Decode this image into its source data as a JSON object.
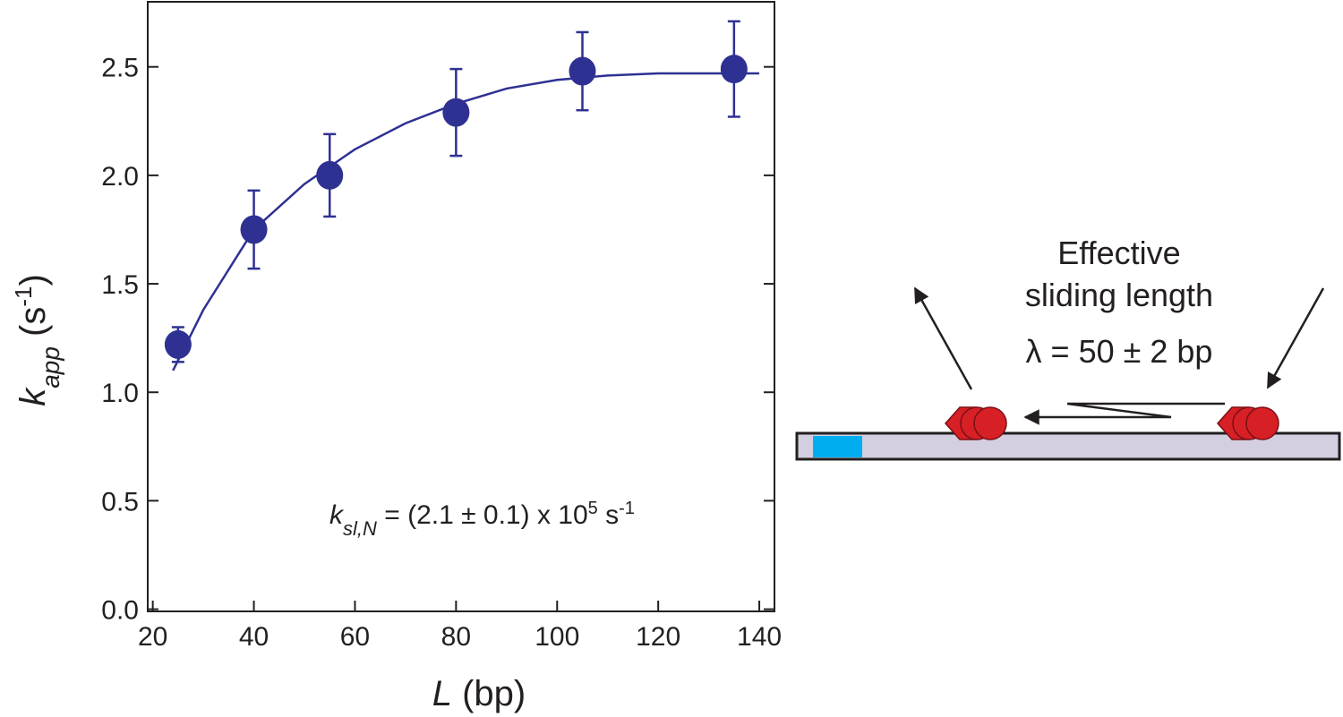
{
  "chart_data": {
    "type": "scatter",
    "x": [
      25,
      40,
      55,
      80,
      105,
      135
    ],
    "values": [
      1.22,
      1.75,
      2.0,
      2.29,
      2.48,
      2.49
    ],
    "errors": [
      0.08,
      0.18,
      0.19,
      0.2,
      0.18,
      0.22
    ],
    "color": "#2e3192",
    "fit": {
      "x": [
        24,
        30,
        40,
        50,
        60,
        70,
        80,
        90,
        100,
        110,
        120,
        140
      ],
      "values": [
        1.1,
        1.38,
        1.75,
        1.96,
        2.12,
        2.24,
        2.33,
        2.4,
        2.44,
        2.46,
        2.47,
        2.47
      ],
      "color": "#2e3192"
    },
    "xlim": [
      19,
      143
    ],
    "ylim": [
      -0.01,
      2.8
    ],
    "xticks": [
      20,
      40,
      60,
      80,
      100,
      120,
      140
    ],
    "yticks": [
      {
        "value": 0,
        "label": "0.0"
      },
      0.5,
      {
        "value": 1,
        "label": "1.0"
      },
      1.5,
      {
        "value": 2,
        "label": "2.0"
      },
      2.5
    ],
    "x_label": {
      "var": "L",
      "unit": " (bp)"
    },
    "y_label": {
      "var": "k",
      "sub": "app",
      "open": " (s",
      "sup": "-1",
      "close": ")"
    },
    "annotation": {
      "var": "k",
      "sub": "sl,N",
      "text": " = (2.1 ± 0.1) x 10",
      "exp": "5",
      "unit": " s",
      "unit_exp": "-1"
    }
  },
  "diagram": {
    "line1": "Effective",
    "line2": "sliding length",
    "line3": "λ = 50 ± 2 bp"
  }
}
